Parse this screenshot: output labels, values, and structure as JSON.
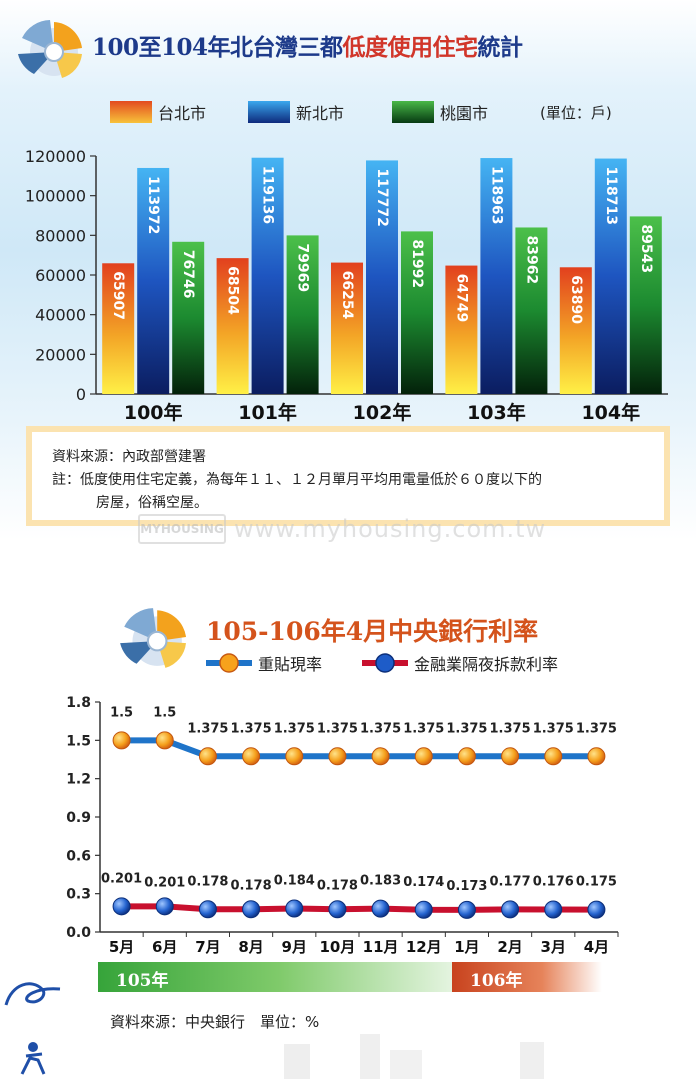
{
  "chart_data": [
    {
      "type": "bar",
      "title": "100至104年北台灣三都低度使用住宅統計",
      "title_plain": "100至104年北台灣三都",
      "title_highlight": "低度使用住宅",
      "title_tail": "統計",
      "unit": "(單位：戶)",
      "categories": [
        "100年",
        "101年",
        "102年",
        "103年",
        "104年"
      ],
      "series": [
        {
          "name": "台北市",
          "values": [
            65907,
            68504,
            66254,
            64749,
            63890
          ],
          "color": "#f08a1e"
        },
        {
          "name": "新北市",
          "values": [
            113972,
            119136,
            117772,
            118963,
            118713
          ],
          "color": "#1f6fd1"
        },
        {
          "name": "桃園市",
          "values": [
            76746,
            79969,
            81992,
            83962,
            89543
          ],
          "color": "#2e9b3a"
        }
      ],
      "ylim": [
        0,
        120000
      ],
      "yticks": [
        0,
        20000,
        40000,
        60000,
        80000,
        100000,
        120000
      ],
      "legend": "top",
      "grid": false,
      "source": "資料來源：內政部營建署",
      "note_label": "註：",
      "note_line1": "低度使用住宅定義，為每年１１、１２月單月平均用電量低於６０度以下的",
      "note_line2": "房屋，俗稱空屋。"
    },
    {
      "type": "line",
      "title": "105-106年4月中央銀行利率",
      "x": [
        "5月",
        "6月",
        "7月",
        "8月",
        "9月",
        "10月",
        "11月",
        "12月",
        "1月",
        "2月",
        "3月",
        "4月"
      ],
      "series": [
        {
          "name": "重貼現率",
          "values": [
            1.5,
            1.5,
            1.375,
            1.375,
            1.375,
            1.375,
            1.375,
            1.375,
            1.375,
            1.375,
            1.375,
            1.375
          ],
          "labels": [
            "1.5",
            "1.5",
            "1.375",
            "1.375",
            "1.375",
            "1.375",
            "1.375",
            "1.375",
            "1.375",
            "1.375",
            "1.375",
            "1.375"
          ],
          "color": "#1f74c9",
          "marker": "#f7a21c"
        },
        {
          "name": "金融業隔夜拆款利率",
          "values": [
            0.201,
            0.201,
            0.178,
            0.178,
            0.184,
            0.178,
            0.183,
            0.174,
            0.173,
            0.177,
            0.176,
            0.175
          ],
          "labels": [
            "0.201",
            "0.201",
            "0.178",
            "0.178",
            "0.184",
            "0.178",
            "0.183",
            "0.174",
            "0.173",
            "0.177",
            "0.176",
            "0.175"
          ],
          "color": "#c8102e",
          "marker": "#1e5cc8"
        }
      ],
      "ylim": [
        0,
        1.8
      ],
      "yticks": [
        "0.0",
        "0.3",
        "0.6",
        "0.9",
        "1.2",
        "1.5",
        "1.8"
      ],
      "year_bands": [
        "105年",
        "106年"
      ],
      "legend": "top",
      "source": "資料來源：中央銀行　單位：%"
    }
  ],
  "watermark": {
    "url": "www.myhousing.com.tw",
    "logo": "MYHOUSING"
  }
}
